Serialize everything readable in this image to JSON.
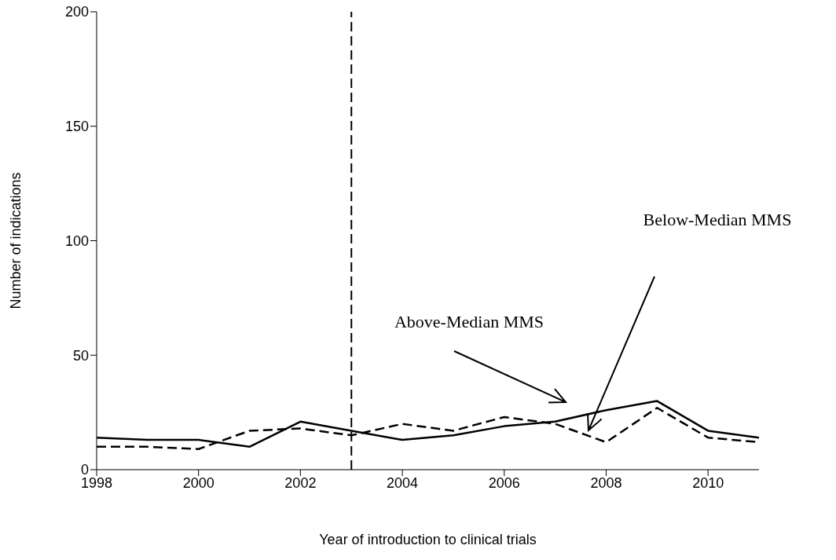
{
  "chart_data": {
    "type": "line",
    "xlabel": "Year of introduction to clinical trials",
    "ylabel": "Number of indications",
    "x": [
      1998,
      1999,
      2000,
      2001,
      2002,
      2003,
      2004,
      2005,
      2006,
      2007,
      2008,
      2009,
      2010,
      2011
    ],
    "series": [
      {
        "color": "#000000",
        "line_style": "solid",
        "values": [
          14,
          13,
          13,
          10,
          21,
          17,
          13,
          15,
          19,
          21,
          26,
          30,
          17,
          14
        ]
      },
      {
        "color": "#000000",
        "line_style": "dashed",
        "values": [
          10,
          10,
          9,
          17,
          18,
          15,
          20,
          17,
          23,
          20,
          12,
          27,
          14,
          12
        ]
      }
    ],
    "xlim": [
      1998,
      2011
    ],
    "xticks": [
      1998,
      2000,
      2002,
      2004,
      2006,
      2008,
      2010
    ],
    "ylim": [
      0,
      200
    ],
    "yticks": [
      0,
      50,
      100,
      150,
      200
    ],
    "ref_lines": [
      {
        "axis": "x",
        "value": 2003,
        "color": "#000000",
        "line_style": "dashed"
      }
    ],
    "annotations": [
      "Above-Median MMS",
      "Below-Median MMS"
    ],
    "grid": false,
    "legend": false,
    "marker": "none"
  }
}
